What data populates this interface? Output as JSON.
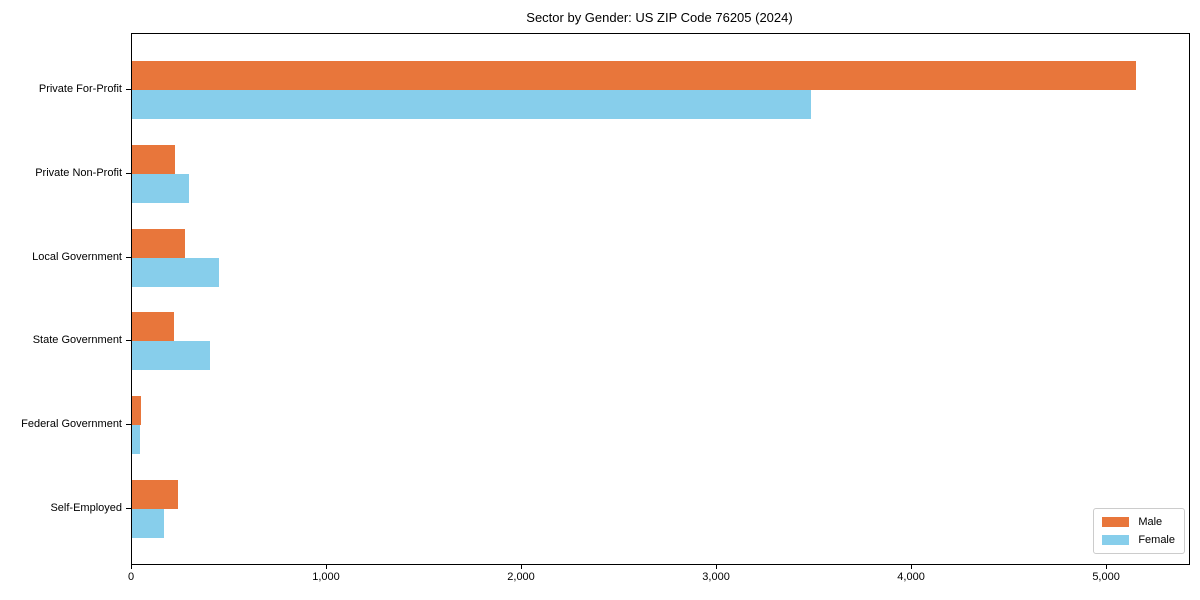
{
  "chart_data": {
    "type": "bar",
    "orientation": "horizontal",
    "title": "Sector by Gender: US ZIP Code 76205 (2024)",
    "xlabel": "",
    "ylabel": "",
    "categories": [
      "Private For-Profit",
      "Private Non-Profit",
      "Local Government",
      "State Government",
      "Federal Government",
      "Self-Employed"
    ],
    "series": [
      {
        "name": "Male",
        "color": "#E8763B",
        "values": [
          5150,
          220,
          270,
          215,
          45,
          235
        ]
      },
      {
        "name": "Female",
        "color": "#87CEEB",
        "values": [
          3480,
          290,
          445,
          400,
          40,
          165
        ]
      }
    ],
    "xlim": [
      0,
      5420
    ],
    "xticks": [
      {
        "value": 0,
        "label": "0"
      },
      {
        "value": 1000,
        "label": "1,000"
      },
      {
        "value": 2000,
        "label": "2,000"
      },
      {
        "value": 3000,
        "label": "3,000"
      },
      {
        "value": 4000,
        "label": "4,000"
      },
      {
        "value": 5000,
        "label": "5,000"
      }
    ],
    "grid": false,
    "legend": {
      "position": "lower right",
      "labels": [
        "Male",
        "Female"
      ]
    }
  }
}
